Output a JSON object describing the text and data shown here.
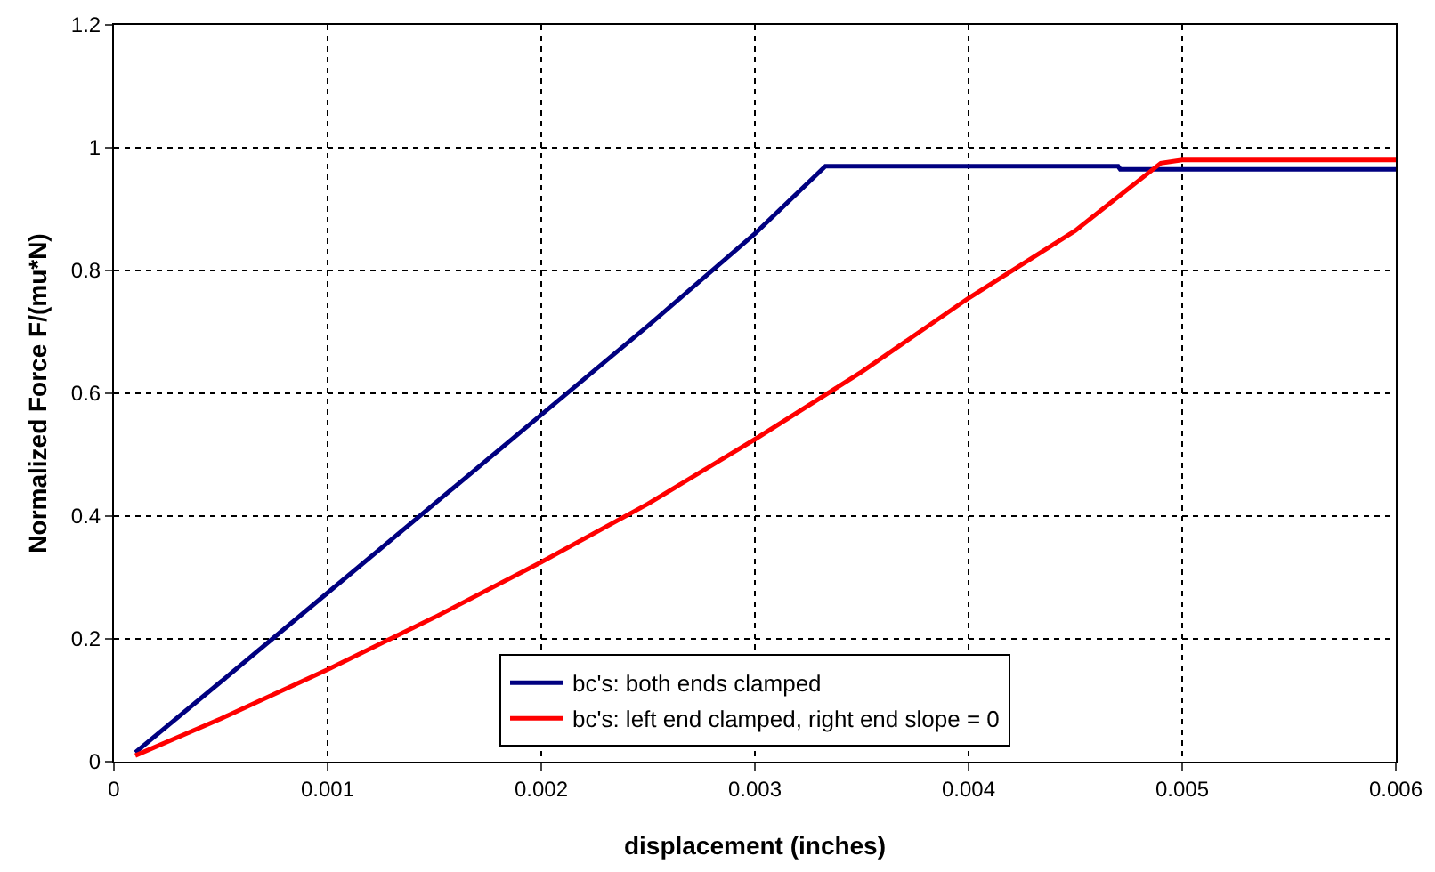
{
  "chart_data": {
    "type": "line",
    "xlabel": "displacement (inches)",
    "ylabel": "Normalized Force F/(mu*N)",
    "xlim": [
      0,
      0.006
    ],
    "xticks": [
      0,
      0.001,
      0.002,
      0.003,
      0.004,
      0.005,
      0.006
    ],
    "ylim": [
      0,
      1.2
    ],
    "yticks": [
      0,
      0.2,
      0.4,
      0.6,
      0.8,
      1,
      1.2
    ],
    "grid": true,
    "legend": "bottom",
    "marker": "none",
    "line_style": "solid",
    "series": [
      {
        "name": "bc's: both ends clamped",
        "color": "#000080",
        "x": [
          0.0001,
          0.0005,
          0.001,
          0.0015,
          0.002,
          0.0025,
          0.003,
          0.00333,
          0.004,
          0.0047,
          0.00471,
          0.006
        ],
        "values": [
          0.015,
          0.13,
          0.275,
          0.42,
          0.565,
          0.71,
          0.86,
          0.97,
          0.97,
          0.97,
          0.965,
          0.965
        ]
      },
      {
        "name": "bc's: left end clamped, right end slope = 0",
        "color": "#ff0000",
        "x": [
          0.0001,
          0.0005,
          0.001,
          0.0015,
          0.002,
          0.0025,
          0.003,
          0.0035,
          0.004,
          0.0045,
          0.0049,
          0.005,
          0.006
        ],
        "values": [
          0.01,
          0.07,
          0.15,
          0.235,
          0.325,
          0.42,
          0.525,
          0.635,
          0.755,
          0.865,
          0.975,
          0.98,
          0.98
        ]
      }
    ]
  }
}
